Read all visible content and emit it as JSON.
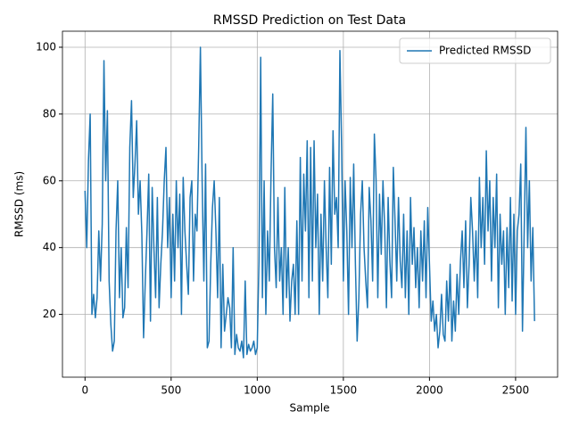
{
  "chart_data": {
    "type": "line",
    "title": "RMSSD Prediction on Test Data",
    "x_label": "Sample",
    "y_label": "RMSSD (ms)",
    "x": [
      0,
      10,
      20,
      30,
      40,
      50,
      60,
      70,
      80,
      90,
      100,
      110,
      120,
      130,
      140,
      150,
      160,
      170,
      180,
      190,
      200,
      210,
      220,
      230,
      240,
      250,
      260,
      270,
      280,
      290,
      300,
      310,
      320,
      330,
      340,
      350,
      360,
      370,
      380,
      390,
      400,
      410,
      420,
      430,
      440,
      450,
      460,
      470,
      480,
      490,
      500,
      510,
      520,
      530,
      540,
      550,
      560,
      570,
      580,
      590,
      600,
      610,
      620,
      630,
      640,
      650,
      660,
      670,
      680,
      690,
      700,
      710,
      720,
      730,
      740,
      750,
      760,
      770,
      780,
      790,
      800,
      810,
      820,
      830,
      840,
      850,
      860,
      870,
      880,
      890,
      900,
      910,
      920,
      930,
      940,
      950,
      960,
      970,
      980,
      990,
      1000,
      1010,
      1020,
      1030,
      1040,
      1050,
      1060,
      1070,
      1080,
      1090,
      1100,
      1110,
      1120,
      1130,
      1140,
      1150,
      1160,
      1170,
      1180,
      1190,
      1200,
      1210,
      1220,
      1230,
      1240,
      1250,
      1260,
      1270,
      1280,
      1290,
      1300,
      1310,
      1320,
      1330,
      1340,
      1350,
      1360,
      1370,
      1380,
      1390,
      1400,
      1410,
      1420,
      1430,
      1440,
      1450,
      1460,
      1470,
      1480,
      1490,
      1500,
      1510,
      1520,
      1530,
      1540,
      1550,
      1560,
      1570,
      1580,
      1590,
      1600,
      1610,
      1620,
      1630,
      1640,
      1650,
      1660,
      1670,
      1680,
      1690,
      1700,
      1710,
      1720,
      1730,
      1740,
      1750,
      1760,
      1770,
      1780,
      1790,
      1800,
      1810,
      1820,
      1830,
      1840,
      1850,
      1860,
      1870,
      1880,
      1890,
      1900,
      1910,
      1920,
      1930,
      1940,
      1950,
      1960,
      1970,
      1980,
      1990,
      2000,
      2010,
      2020,
      2030,
      2040,
      2050,
      2060,
      2070,
      2080,
      2090,
      2100,
      2110,
      2120,
      2130,
      2140,
      2150,
      2160,
      2170,
      2180,
      2190,
      2200,
      2210,
      2220,
      2230,
      2240,
      2250,
      2260,
      2270,
      2280,
      2290,
      2300,
      2310,
      2320,
      2330,
      2340,
      2350,
      2360,
      2370,
      2380,
      2390,
      2400,
      2410,
      2420,
      2430,
      2440,
      2450,
      2460,
      2470,
      2480,
      2490,
      2500,
      2510,
      2520,
      2530,
      2540,
      2550,
      2560,
      2570,
      2580,
      2590,
      2600,
      2610
    ],
    "series": [
      {
        "name": "Predicted RMSSD",
        "color": "#1f77b4",
        "values": [
          57,
          40,
          66,
          80,
          20,
          26,
          19,
          25,
          45,
          30,
          47,
          96,
          60,
          81,
          30,
          17,
          9,
          12,
          45,
          60,
          25,
          40,
          19,
          22,
          46,
          28,
          70,
          84,
          55,
          65,
          78,
          50,
          60,
          44,
          13,
          30,
          45,
          62,
          18,
          58,
          40,
          25,
          55,
          22,
          35,
          45,
          60,
          70,
          40,
          55,
          25,
          50,
          30,
          60,
          40,
          56,
          20,
          61,
          45,
          35,
          26,
          55,
          60,
          30,
          50,
          45,
          70,
          100,
          60,
          30,
          65,
          10,
          12,
          35,
          52,
          60,
          45,
          25,
          55,
          10,
          35,
          15,
          20,
          25,
          22,
          10,
          40,
          8,
          14,
          10,
          9,
          12,
          7,
          30,
          8,
          11,
          9,
          10,
          12,
          8,
          10,
          36,
          97,
          25,
          60,
          20,
          45,
          30,
          62,
          86,
          40,
          28,
          55,
          30,
          40,
          20,
          58,
          25,
          40,
          18,
          30,
          35,
          20,
          48,
          20,
          67,
          30,
          62,
          45,
          72,
          25,
          70,
          30,
          72,
          40,
          56,
          20,
          50,
          30,
          60,
          40,
          25,
          64,
          35,
          75,
          50,
          55,
          40,
          99,
          70,
          30,
          60,
          45,
          20,
          61,
          40,
          65,
          35,
          12,
          25,
          50,
          60,
          40,
          30,
          22,
          58,
          48,
          30,
          74,
          60,
          25,
          56,
          38,
          60,
          46,
          22,
          55,
          36,
          25,
          64,
          48,
          30,
          55,
          36,
          28,
          50,
          25,
          45,
          20,
          55,
          35,
          46,
          28,
          40,
          22,
          45,
          30,
          48,
          25,
          52,
          35,
          18,
          24,
          15,
          20,
          10,
          15,
          26,
          14,
          12,
          30,
          18,
          35,
          12,
          24,
          15,
          32,
          20,
          36,
          45,
          28,
          48,
          22,
          35,
          55,
          45,
          30,
          45,
          25,
          61,
          40,
          55,
          35,
          69,
          45,
          60,
          30,
          55,
          40,
          62,
          22,
          50,
          35,
          45,
          20,
          46,
          28,
          55,
          24,
          50,
          20,
          45,
          50,
          65,
          15,
          45,
          76,
          40,
          60,
          30,
          46,
          18
        ]
      }
    ],
    "xlim": [
      -131,
      2744
    ],
    "ylim": [
      1.2,
      104.8
    ],
    "xticks": [
      0,
      500,
      1000,
      1500,
      2000,
      2500
    ],
    "yticks": [
      20,
      40,
      60,
      80,
      100
    ],
    "grid": true,
    "legend": "upper right"
  }
}
